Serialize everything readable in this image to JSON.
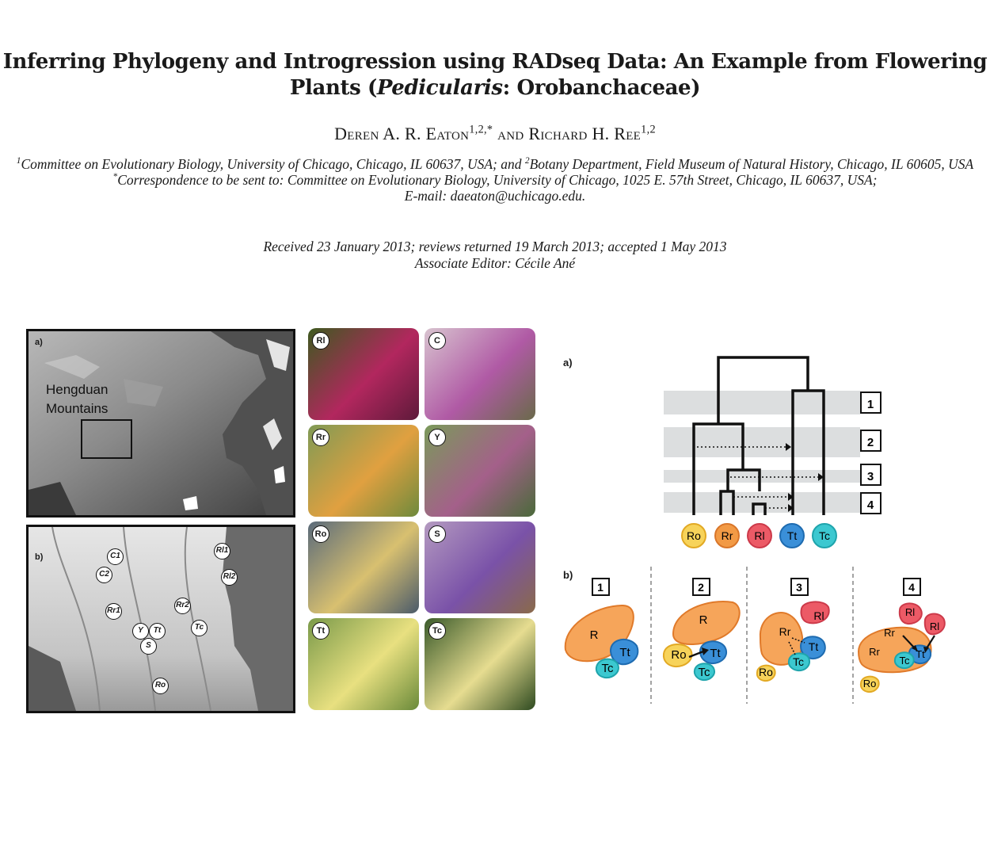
{
  "header": {
    "title_line1": "Inferring Phylogeny and Introgression using RADseq Data: An Example from Flowering",
    "title_line2_pre": "Plants (",
    "title_line2_italic": "Pedicularis",
    "title_line2_post": ": Orobanchaceae)",
    "author1": "Deren A. R. Eaton",
    "author1_sup": "1,2,*",
    "and": "and",
    "author2": "Richard H. Ree",
    "author2_sup": "1,2",
    "affil1_sup": "1",
    "affil1_text": "Committee on Evolutionary Biology, University of Chicago, Chicago, IL 60637, USA; and",
    "affil2_sup": "2",
    "affil2_text": "Botany Department, Field Museum of Natural History, Chicago, IL 60605, USA",
    "correspondence_sup": "*",
    "correspondence": "Correspondence to be sent to: Committee on Evolutionary Biology, University of Chicago, 1025 E. 57th Street, Chicago, IL 60637, USA;",
    "email": "E-mail: daeaton@uchicago.edu.",
    "received": "Received 23 January 2013; reviews returned 19 March 2013; accepted 1 May 2013",
    "editor": "Associate Editor: Cécile Ané"
  },
  "map_panel": {
    "a_label": "a)",
    "b_label": "b)",
    "region_line1": "Hengduan",
    "region_line2": "Mountains",
    "sites": [
      "C1",
      "C2",
      "Rl1",
      "Rl2",
      "Rr1",
      "Rr2",
      "Y",
      "Tt",
      "S",
      "Tc",
      "Ro"
    ]
  },
  "photos": [
    "Rl",
    "C",
    "Rr",
    "Y",
    "Ro",
    "S",
    "Tt",
    "Tc"
  ],
  "tree_panel": {
    "a_label": "a)",
    "b_label": "b)",
    "events": [
      "1",
      "2",
      "3",
      "4"
    ],
    "tips": [
      "Ro",
      "Rr",
      "Rl",
      "Tt",
      "Tc"
    ],
    "scenario_labels": {
      "s1": [
        "R",
        "Tt",
        "Tc"
      ],
      "s2": [
        "R",
        "Ro",
        "Tt",
        "Tc"
      ],
      "s3": [
        "Rl",
        "Rr",
        "Tt",
        "Tc",
        "Ro"
      ],
      "s4": [
        "Rl",
        "Rr",
        "Rl",
        "Rr",
        "Tt",
        "Tc",
        "Ro"
      ]
    },
    "colors": {
      "Ro": "#f7d35a",
      "Rr": "#f29a45",
      "Rl": "#ec5a66",
      "Tt": "#3a8fd8",
      "Tc": "#3cc8d0"
    }
  }
}
